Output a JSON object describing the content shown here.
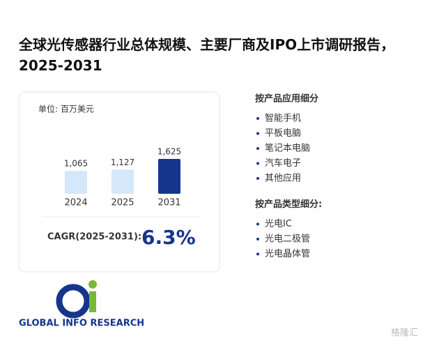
{
  "title": "全球光传感器行业总体规模、主要厂商及IPO上市调研报告，2025-2031",
  "chart_data": {
    "type": "bar",
    "unit_label": "单位: 百万美元",
    "categories": [
      "2024",
      "2025",
      "2031"
    ],
    "values": [
      1065,
      1127,
      1625
    ],
    "value_labels": [
      "1,065",
      "1,127",
      "1,625"
    ],
    "colors": [
      "#d5e7fa",
      "#d5e7fa",
      "#16358c"
    ]
  },
  "cagr": {
    "label": "CAGR(2025-2031):",
    "value": "6.3%"
  },
  "segments": [
    {
      "heading": "按产品应用细分",
      "items": [
        "智能手机",
        "平板电脑",
        "笔记本电脑",
        "汽车电子",
        "其他应用"
      ]
    },
    {
      "heading": "按产品类型细分:",
      "items": [
        "光电IC",
        "光电二极管",
        "光电晶体管"
      ]
    }
  ],
  "logo": "GLOBAL INFO RESEARCH",
  "watermark": "格隆汇"
}
